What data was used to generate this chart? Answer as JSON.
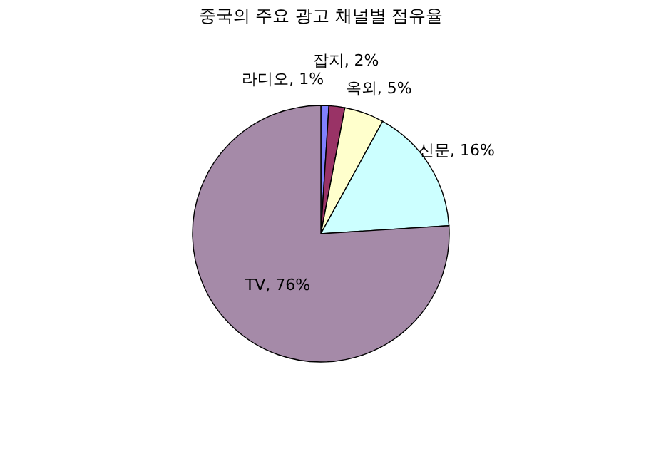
{
  "chart_data": {
    "type": "pie",
    "title": "중국의 주요 광고 채널별 점유율",
    "categories": [
      "라디오",
      "잡지",
      "옥외",
      "신문",
      "TV"
    ],
    "values": [
      1,
      2,
      5,
      16,
      76
    ],
    "value_labels": [
      "1%",
      "2%",
      "5%",
      "16%",
      "76%"
    ],
    "colors": [
      "#8080ff",
      "#993366",
      "#ffffcc",
      "#ccffff",
      "#a58aa8"
    ]
  }
}
